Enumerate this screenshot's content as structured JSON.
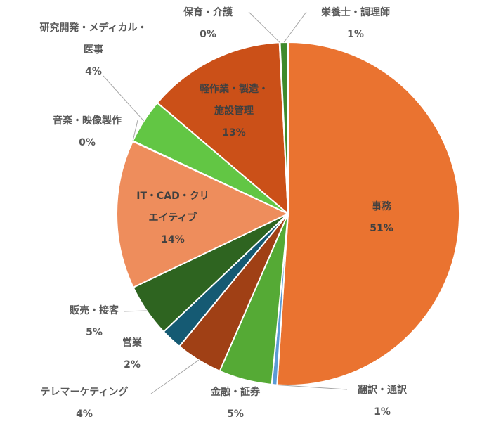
{
  "chart_data": {
    "type": "pie",
    "title": "",
    "series": [
      {
        "values": [
          {
            "label": "事務",
            "percent_label": "51%",
            "value": 51,
            "color": "#ea7330"
          },
          {
            "label": "翻訳・通訳",
            "percent_label": "1%",
            "value": 0.5,
            "color": "#5b9bd5"
          },
          {
            "label": "金融・証券",
            "percent_label": "5%",
            "value": 5,
            "color": "#55aa35"
          },
          {
            "label": "テレマーケティング",
            "percent_label": "4%",
            "value": 4.4,
            "color": "#a04015"
          },
          {
            "label": "営業",
            "percent_label": "2%",
            "value": 2,
            "color": "#155a73"
          },
          {
            "label": "販売・接客",
            "percent_label": "5%",
            "value": 5,
            "color": "#2e6420"
          },
          {
            "label": "IT・CAD・クリエイティブ",
            "percent_label": "14%",
            "value": 14,
            "color": "#ee8d5c"
          },
          {
            "label": "音楽・映像製作",
            "percent_label": "0%",
            "value": 0.05,
            "color": "#ea7330"
          },
          {
            "label": "研究開発・メディカル・医事",
            "percent_label": "4%",
            "value": 4.2,
            "color": "#62c644"
          },
          {
            "label": "軽作業・製造・施設管理",
            "percent_label": "13%",
            "value": 13,
            "color": "#cb5018"
          },
          {
            "label": "保育・介護",
            "percent_label": "0%",
            "value": 0.05,
            "color": "#a04015"
          },
          {
            "label": "栄養士・調理師",
            "percent_label": "1%",
            "value": 0.75,
            "color": "#3f8a2c"
          }
        ]
      }
    ],
    "legend": "none",
    "labels": [
      {
        "lines": [
          "事務",
          "51%"
        ],
        "placement": "inside"
      },
      {
        "lines": [
          "翻訳・通訳",
          "1%"
        ],
        "placement": "outside"
      },
      {
        "lines": [
          "金融・証券",
          "5%"
        ],
        "placement": "outside"
      },
      {
        "lines": [
          "テレマーケティング",
          "4%"
        ],
        "placement": "outside"
      },
      {
        "lines": [
          "営業",
          "2%"
        ],
        "placement": "outside"
      },
      {
        "lines": [
          "販売・接客",
          "5%"
        ],
        "placement": "outside"
      },
      {
        "lines": [
          "IT・CAD・クリ",
          "エイティブ",
          "14%"
        ],
        "placement": "inside"
      },
      {
        "lines": [
          "音楽・映像製作",
          "0%"
        ],
        "placement": "outside"
      },
      {
        "lines": [
          "研究開発・メディカル・",
          "医事",
          "4%"
        ],
        "placement": "outside"
      },
      {
        "lines": [
          "軽作業・製造・",
          "施設管理",
          "13%"
        ],
        "placement": "inside"
      },
      {
        "lines": [
          "保育・介護",
          "0%"
        ],
        "placement": "outside"
      },
      {
        "lines": [
          "栄養士・調理師",
          "1%"
        ],
        "placement": "outside"
      }
    ]
  }
}
